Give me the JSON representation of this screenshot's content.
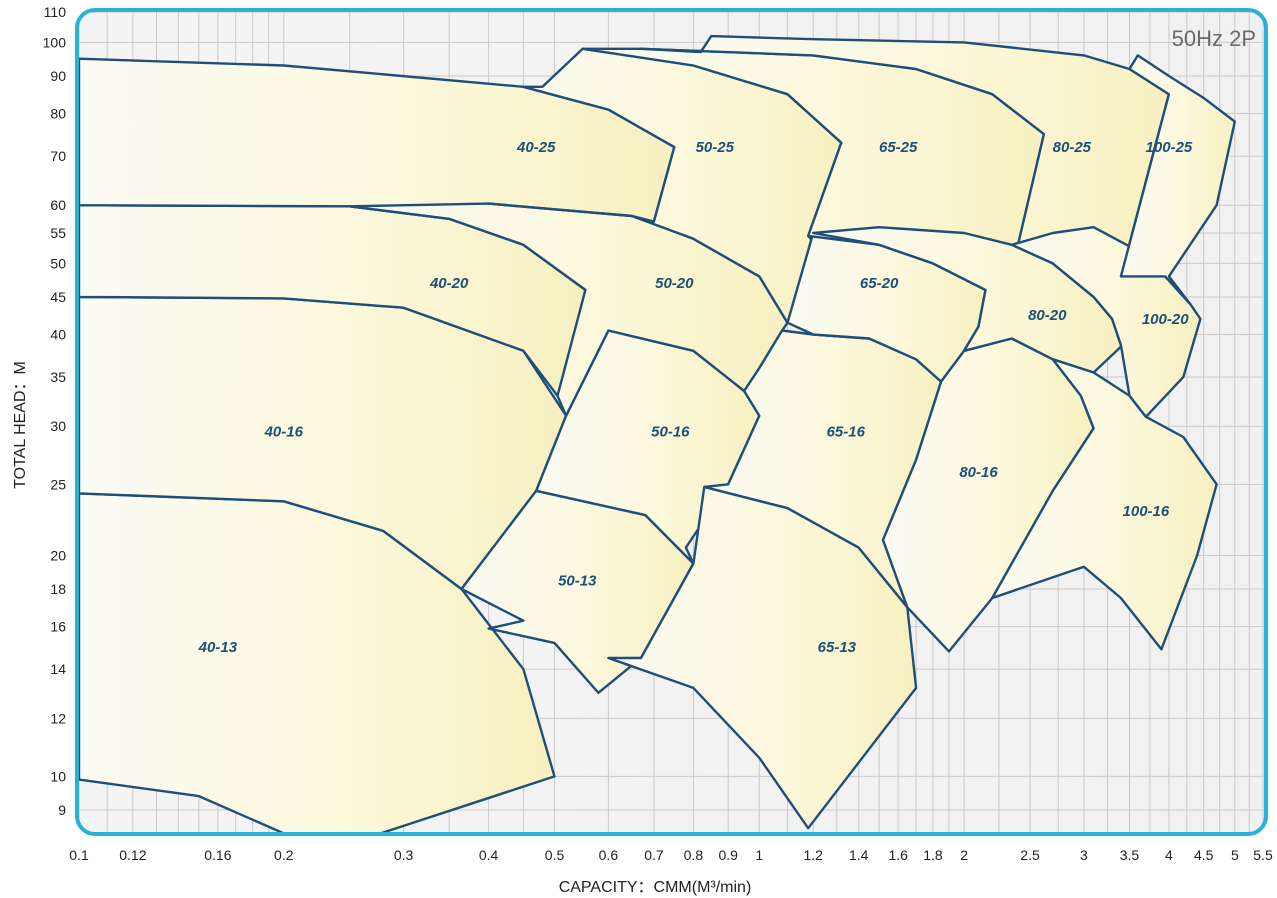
{
  "badge": "50Hz 2P",
  "chart_data": {
    "type": "area",
    "xlabel": "CAPACITY：CMM(M³/min)",
    "ylabel": "TOTAL HEAD：M",
    "x_scale": "log",
    "y_scale": "log",
    "xlim": [
      0.1,
      5.5
    ],
    "ylim": [
      8.4,
      110
    ],
    "grid": true,
    "x_ticks": [
      0.1,
      0.12,
      0.16,
      0.2,
      0.3,
      0.4,
      0.5,
      0.6,
      0.7,
      0.8,
      0.9,
      1,
      1.2,
      1.4,
      1.6,
      1.8,
      2,
      2.5,
      3,
      3.5,
      4,
      4.5,
      5,
      5.5
    ],
    "x_tick_labels": [
      "0.1",
      "0.12",
      "0.16",
      "0.2",
      "0.3",
      "0.4",
      "0.5",
      "0.6",
      "0.7",
      "0.8",
      "0.9",
      "1",
      "1.2",
      "1.4",
      "1.6",
      "1.8",
      "2",
      "2.5",
      "3",
      "3.5",
      "4",
      "4.5",
      "5",
      "5.5"
    ],
    "x_minor_grid": [
      0.11,
      0.13,
      0.14,
      0.15,
      0.17,
      0.18,
      0.19,
      0.25,
      0.35,
      0.45,
      1.1,
      1.3,
      1.5,
      1.7,
      1.9,
      2.25,
      2.75,
      3.25,
      3.75,
      4.25,
      4.75,
      5.25
    ],
    "y_ticks": [
      9,
      10,
      12,
      14,
      16,
      18,
      20,
      25,
      30,
      35,
      40,
      45,
      50,
      55,
      60,
      70,
      80,
      90,
      100,
      110
    ],
    "y_tick_labels": [
      "9",
      "10",
      "12",
      "14",
      "16",
      "18",
      "20",
      "25",
      "30",
      "35",
      "40",
      "45",
      "50",
      "55",
      "60",
      "70",
      "80",
      "90",
      "100",
      "110"
    ],
    "regions": [
      {
        "name": "40-13",
        "label_at": [
          0.16,
          15
        ],
        "points": [
          [
            0.1,
            9.9
          ],
          [
            0.15,
            9.4
          ],
          [
            0.21,
            8.2
          ],
          [
            0.26,
            8.2
          ],
          [
            0.5,
            10
          ],
          [
            0.45,
            14
          ],
          [
            0.365,
            18
          ],
          [
            0.28,
            21.6
          ],
          [
            0.2,
            23.7
          ],
          [
            0.1,
            24.3
          ]
        ]
      },
      {
        "name": "40-16",
        "label_at": [
          0.2,
          29.5
        ],
        "points": [
          [
            0.1,
            24.3
          ],
          [
            0.2,
            23.7
          ],
          [
            0.28,
            21.6
          ],
          [
            0.365,
            18
          ],
          [
            0.47,
            24.5
          ],
          [
            0.52,
            31
          ],
          [
            0.45,
            38
          ],
          [
            0.3,
            43.5
          ],
          [
            0.2,
            44.8
          ],
          [
            0.1,
            45
          ]
        ]
      },
      {
        "name": "40-20",
        "label_at": [
          0.35,
          47
        ],
        "points": [
          [
            0.1,
            45
          ],
          [
            0.2,
            44.8
          ],
          [
            0.3,
            43.5
          ],
          [
            0.45,
            38
          ],
          [
            0.505,
            33
          ],
          [
            0.54,
            41
          ],
          [
            0.555,
            46
          ],
          [
            0.45,
            53
          ],
          [
            0.35,
            57.5
          ],
          [
            0.25,
            59.8
          ],
          [
            0.1,
            60
          ]
        ]
      },
      {
        "name": "40-25",
        "label_at": [
          0.47,
          72
        ],
        "points": [
          [
            0.1,
            60
          ],
          [
            0.25,
            59.8
          ],
          [
            0.35,
            57.5
          ],
          [
            0.45,
            53
          ],
          [
            0.555,
            46
          ],
          [
            0.62,
            53
          ],
          [
            0.7,
            57
          ],
          [
            0.75,
            72
          ],
          [
            0.6,
            81
          ],
          [
            0.45,
            87
          ],
          [
            0.2,
            93
          ],
          [
            0.1,
            95
          ]
        ]
      },
      {
        "name": "50-13",
        "label_at": [
          0.54,
          18.5
        ],
        "points": [
          [
            0.4,
            15.9
          ],
          [
            0.5,
            15.2
          ],
          [
            0.58,
            13
          ],
          [
            0.67,
            14.5
          ],
          [
            0.8,
            19.5
          ],
          [
            0.68,
            22.7
          ],
          [
            0.47,
            24.5
          ],
          [
            0.365,
            18
          ],
          [
            0.45,
            16.3
          ]
        ]
      },
      {
        "name": "50-16",
        "label_at": [
          0.74,
          29.5
        ],
        "points": [
          [
            0.47,
            24.5
          ],
          [
            0.68,
            22.7
          ],
          [
            0.8,
            19.5
          ],
          [
            0.78,
            20.5
          ],
          [
            0.9,
            25
          ],
          [
            1.0,
            31
          ],
          [
            0.95,
            33.5
          ],
          [
            0.8,
            38
          ],
          [
            0.6,
            40.5
          ],
          [
            0.52,
            31
          ]
        ]
      },
      {
        "name": "50-20",
        "label_at": [
          0.75,
          47
        ],
        "points": [
          [
            0.52,
            31
          ],
          [
            0.6,
            40.5
          ],
          [
            0.8,
            38
          ],
          [
            0.95,
            33.5
          ],
          [
            1.0,
            36
          ],
          [
            1.08,
            40.5
          ],
          [
            1.1,
            41.5
          ],
          [
            1.0,
            48
          ],
          [
            0.8,
            54
          ],
          [
            0.65,
            58
          ],
          [
            0.4,
            60.3
          ],
          [
            0.25,
            59.8
          ],
          [
            0.35,
            57.5
          ],
          [
            0.45,
            53
          ],
          [
            0.555,
            46
          ],
          [
            0.505,
            33
          ]
        ]
      },
      {
        "name": "50-25",
        "label_at": [
          0.86,
          72
        ],
        "points": [
          [
            0.4,
            60.3
          ],
          [
            0.65,
            58
          ],
          [
            0.8,
            54
          ],
          [
            1.0,
            48
          ],
          [
            1.1,
            41.5
          ],
          [
            1.3,
            49
          ],
          [
            1.18,
            54.5
          ],
          [
            1.32,
            73
          ],
          [
            1.1,
            85
          ],
          [
            0.8,
            93
          ],
          [
            0.55,
            98
          ],
          [
            0.48,
            87
          ],
          [
            0.45,
            87
          ],
          [
            0.6,
            81
          ],
          [
            0.75,
            72
          ],
          [
            0.7,
            57
          ],
          [
            0.65,
            58
          ]
        ]
      },
      {
        "name": "65-13",
        "label_at": [
          1.3,
          15
        ],
        "points": [
          [
            0.6,
            14.5
          ],
          [
            0.8,
            13.2
          ],
          [
            1.0,
            10.6
          ],
          [
            1.18,
            8.5
          ],
          [
            1.7,
            13.2
          ],
          [
            1.65,
            17
          ],
          [
            1.4,
            20.5
          ],
          [
            1.1,
            23.2
          ],
          [
            0.83,
            24.8
          ],
          [
            0.8,
            19.5
          ],
          [
            0.67,
            14.5
          ]
        ]
      },
      {
        "name": "65-16",
        "label_at": [
          1.34,
          29.5
        ],
        "points": [
          [
            0.83,
            24.8
          ],
          [
            1.1,
            23.2
          ],
          [
            1.4,
            20.5
          ],
          [
            1.65,
            17
          ],
          [
            1.52,
            21
          ],
          [
            1.7,
            27
          ],
          [
            1.85,
            34.5
          ],
          [
            1.7,
            37
          ],
          [
            1.45,
            39.5
          ],
          [
            1.2,
            40
          ],
          [
            1.08,
            40.5
          ],
          [
            1.0,
            36
          ],
          [
            0.95,
            33.5
          ],
          [
            1.0,
            31
          ],
          [
            0.9,
            25
          ]
        ]
      },
      {
        "name": "65-20",
        "label_at": [
          1.5,
          47
        ],
        "points": [
          [
            1.2,
            40
          ],
          [
            1.45,
            39.5
          ],
          [
            1.7,
            37
          ],
          [
            1.85,
            34.5
          ],
          [
            2.0,
            38
          ],
          [
            2.1,
            41
          ],
          [
            2.15,
            46
          ],
          [
            1.8,
            50
          ],
          [
            1.5,
            53
          ],
          [
            1.2,
            55
          ],
          [
            1.1,
            41.5
          ]
        ]
      },
      {
        "name": "65-25",
        "label_at": [
          1.6,
          72
        ],
        "points": [
          [
            1.18,
            54.5
          ],
          [
            1.5,
            53
          ],
          [
            1.8,
            50
          ],
          [
            2.15,
            46
          ],
          [
            2.4,
            53
          ],
          [
            2.62,
            75
          ],
          [
            2.2,
            85
          ],
          [
            1.7,
            92
          ],
          [
            1.2,
            96
          ],
          [
            0.67,
            98
          ],
          [
            0.55,
            98
          ],
          [
            0.8,
            93
          ],
          [
            1.1,
            85
          ],
          [
            1.32,
            73
          ]
        ]
      },
      {
        "name": "80-16",
        "label_at": [
          2.1,
          26
        ],
        "points": [
          [
            1.65,
            17
          ],
          [
            1.9,
            14.8
          ],
          [
            2.2,
            17.5
          ],
          [
            2.7,
            24.5
          ],
          [
            3.1,
            29.8
          ],
          [
            2.97,
            33
          ],
          [
            2.7,
            37
          ],
          [
            2.35,
            39.5
          ],
          [
            2.0,
            38
          ],
          [
            1.85,
            34.5
          ],
          [
            1.7,
            27
          ],
          [
            1.52,
            21
          ]
        ]
      },
      {
        "name": "80-20",
        "label_at": [
          2.65,
          42.5
        ],
        "points": [
          [
            2.0,
            38
          ],
          [
            2.35,
            39.5
          ],
          [
            2.7,
            37
          ],
          [
            3.1,
            35.5
          ],
          [
            3.4,
            38.5
          ],
          [
            3.4,
            38.7
          ],
          [
            3.3,
            42
          ],
          [
            3.1,
            45
          ],
          [
            2.7,
            50
          ],
          [
            2.35,
            53
          ],
          [
            2.0,
            55
          ],
          [
            1.5,
            56
          ],
          [
            1.2,
            55
          ],
          [
            1.5,
            53
          ],
          [
            1.8,
            50
          ],
          [
            2.15,
            46
          ],
          [
            2.1,
            41
          ]
        ]
      },
      {
        "name": "80-25",
        "label_at": [
          2.88,
          72
        ],
        "points": [
          [
            2.4,
            53
          ],
          [
            2.7,
            50
          ],
          [
            3.1,
            45
          ],
          [
            3.3,
            42
          ],
          [
            3.4,
            48
          ],
          [
            4.0,
            85
          ],
          [
            3.5,
            92
          ],
          [
            3.0,
            96
          ],
          [
            2.0,
            100
          ],
          [
            1.2,
            101
          ],
          [
            0.85,
            102
          ],
          [
            0.82,
            97
          ],
          [
            0.67,
            98
          ],
          [
            1.2,
            96
          ],
          [
            1.7,
            92
          ],
          [
            2.2,
            85
          ],
          [
            2.62,
            75
          ]
        ]
      },
      {
        "name": "100-16",
        "label_at": [
          3.7,
          23
        ],
        "points": [
          [
            3.0,
            19.3
          ],
          [
            3.4,
            17.5
          ],
          [
            3.9,
            14.9
          ],
          [
            4.4,
            20
          ],
          [
            4.7,
            25
          ],
          [
            4.2,
            29
          ],
          [
            3.7,
            30.9
          ],
          [
            3.5,
            33
          ],
          [
            3.1,
            35.5
          ],
          [
            2.7,
            37
          ],
          [
            2.97,
            33
          ],
          [
            3.1,
            29.8
          ],
          [
            2.7,
            24.5
          ],
          [
            2.2,
            17.5
          ],
          [
            2.9,
            19.1
          ]
        ]
      },
      {
        "name": "100-20",
        "label_at": [
          3.95,
          42
        ],
        "points": [
          [
            3.7,
            30.9
          ],
          [
            4.2,
            35
          ],
          [
            4.45,
            42
          ],
          [
            4.3,
            44
          ],
          [
            3.95,
            48
          ],
          [
            3.6,
            52
          ],
          [
            3.1,
            56
          ],
          [
            2.7,
            55
          ],
          [
            2.35,
            53
          ],
          [
            2.7,
            50
          ],
          [
            3.1,
            45
          ],
          [
            3.3,
            42
          ],
          [
            3.4,
            38.7
          ],
          [
            3.5,
            33
          ]
        ]
      },
      {
        "name": "100-25",
        "label_at": [
          4.0,
          72
        ],
        "points": [
          [
            4.3,
            44
          ],
          [
            4.0,
            48
          ],
          [
            4.7,
            60
          ],
          [
            5.0,
            78
          ],
          [
            4.5,
            84
          ],
          [
            4.0,
            90
          ],
          [
            3.6,
            96
          ],
          [
            3.5,
            92
          ],
          [
            4.0,
            85
          ],
          [
            3.4,
            48
          ],
          [
            3.95,
            48
          ]
        ]
      }
    ]
  }
}
